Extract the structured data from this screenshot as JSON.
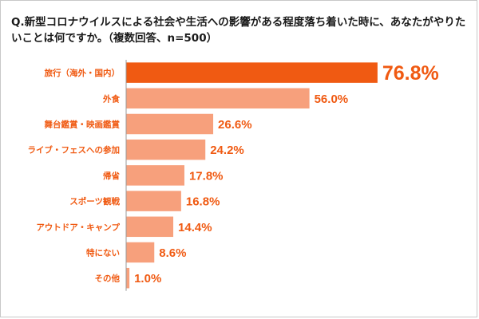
{
  "question": "Q.新型コロナウイルスによる社会や生活への影響がある程度落ち着いた時に、あなたがやりたいことは何ですか。（複数回答、n=500）",
  "colors": {
    "highlight": "#f05a12",
    "bar": "#f7a07c",
    "label": "#f05a12",
    "axis": "#9a9a9a"
  },
  "chart_data": {
    "type": "bar",
    "orientation": "horizontal",
    "title": "",
    "categories": [
      "旅行（海外・国内）",
      "外食",
      "舞台鑑賞・映画鑑賞",
      "ライブ・フェスへの参加",
      "帰省",
      "スポーツ観戦",
      "アウトドア・キャンプ",
      "特にない",
      "その他"
    ],
    "values": [
      76.8,
      56.0,
      26.6,
      24.2,
      17.8,
      16.8,
      14.4,
      8.6,
      1.0
    ],
    "value_labels": [
      "76.8%",
      "56.0%",
      "26.6%",
      "24.2%",
      "17.8%",
      "16.8%",
      "14.4%",
      "8.6%",
      "1.0%"
    ],
    "xlim": [
      0,
      100
    ],
    "highlight_index": 0,
    "grid": false
  }
}
